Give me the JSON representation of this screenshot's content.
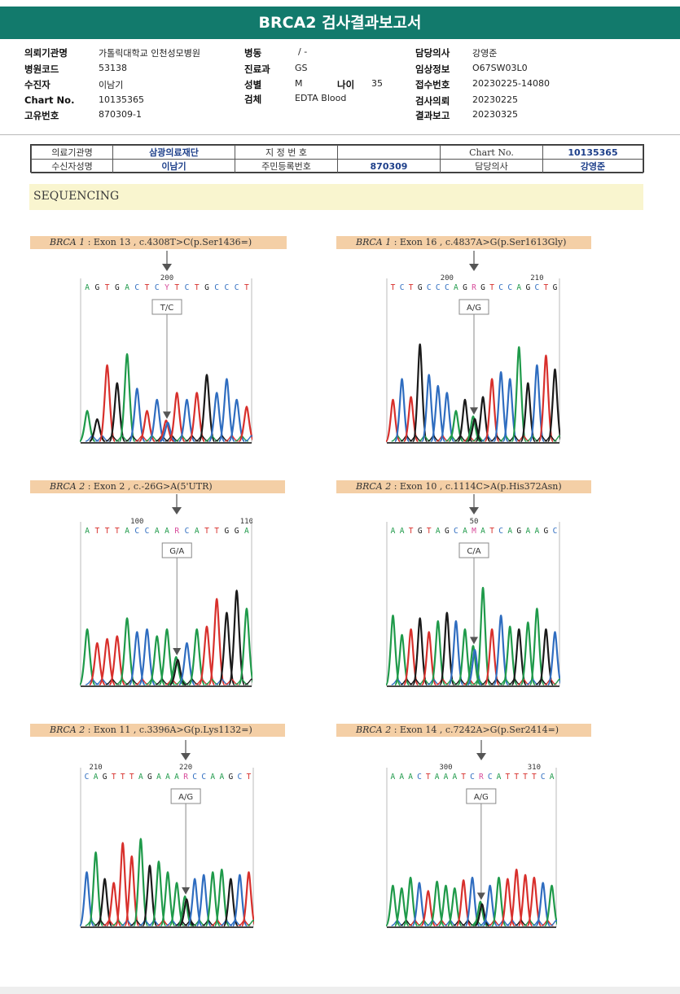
{
  "report": {
    "title": "BRCA2 검사결과보고서"
  },
  "header": {
    "fields": [
      {
        "key": "의뢰기관명",
        "value": "가톨릭대학교 인천성모병원"
      },
      {
        "key": "병원코드",
        "value": "53138"
      },
      {
        "key": "수진자",
        "value": "이남기"
      },
      {
        "key": "Chart No.",
        "value": "10135365"
      },
      {
        "key": "고유번호",
        "value": "870309-1"
      },
      {
        "key": "병동",
        "value": "/ -"
      },
      {
        "key": "진료과",
        "value": "GS"
      },
      {
        "key": "성별",
        "value": "M"
      },
      {
        "key": "나이",
        "value": "35"
      },
      {
        "key": "검체",
        "value": "EDTA Blood"
      },
      {
        "key": "담당의사",
        "value": "강영준"
      },
      {
        "key": "임상정보",
        "value": "O67SW03L0"
      },
      {
        "key": "접수번호",
        "value": "20230225-14080"
      },
      {
        "key": "검사의뢰",
        "value": "20230225"
      },
      {
        "key": "결과보고",
        "value": "20230325"
      }
    ]
  },
  "lab_table": {
    "r1c1": "의료기관명",
    "r1c2": "삼광의료재단",
    "r1c3": "지 정 번 호",
    "r1c4": "",
    "r1c5": "Chart No.",
    "r1c6": "10135365",
    "r2c1": "수신자성명",
    "r2c2": "이남기",
    "r2c3": "주민등록번호",
    "r2c4": "870309",
    "r2c5": "담당의사",
    "r2c6": "강영준"
  },
  "section": {
    "title": "SEQUENCING"
  },
  "colors": {
    "A": "#1f9a4a",
    "T": "#d8302c",
    "G": "#1a1a1a",
    "C": "#2f6dc0",
    "title_bg": "#127a6c"
  },
  "panels": [
    {
      "gene": "BRCA 1",
      "variant": " : Exon 13 , c.4308T>C(p.Ser1436=)",
      "seq": "AGTGACTCYTCTGCCCT",
      "marker_index": 8,
      "pos_labels": [
        {
          "i": 8,
          "t": "200"
        }
      ],
      "call": "T/C",
      "peaks": [
        0.22,
        0.16,
        0.55,
        0.42,
        0.63,
        0.38,
        0.22,
        0.3,
        0.15,
        0.35,
        0.3,
        0.35,
        0.48,
        0.35,
        0.45,
        0.3,
        0.25
      ],
      "seed": 1
    },
    {
      "gene": "BRCA 1",
      "variant": " : Exon 16 , c.4837A>G(p.Ser1613Gly)",
      "seq": "TCTGCCCAGRGTCCAGCTG",
      "marker_index": 9,
      "pos_labels": [
        {
          "i": 6,
          "t": "200"
        },
        {
          "i": 16,
          "t": "210"
        }
      ],
      "call": "A/G",
      "peaks": [
        0.3,
        0.45,
        0.32,
        0.7,
        0.48,
        0.4,
        0.35,
        0.22,
        0.3,
        0.18,
        0.32,
        0.45,
        0.5,
        0.45,
        0.68,
        0.42,
        0.55,
        0.62,
        0.52
      ],
      "seed": 2
    },
    {
      "gene": "BRCA 2",
      "variant": " : Exon 2 , c.-26G>A(5'UTR)",
      "seq": "ATTTACCAARCATTGGA",
      "marker_index": 9,
      "pos_labels": [
        {
          "i": 5,
          "t": "100"
        },
        {
          "i": 16,
          "t": "110"
        }
      ],
      "call": "G/A",
      "peaks": [
        0.4,
        0.3,
        0.33,
        0.35,
        0.48,
        0.38,
        0.4,
        0.35,
        0.4,
        0.2,
        0.3,
        0.4,
        0.42,
        0.62,
        0.52,
        0.68,
        0.55
      ],
      "seed": 3
    },
    {
      "gene": "BRCA 2",
      "variant": " : Exon 10 , c.1114C>A(p.His372Asn)",
      "seq": "AATGTAGCAMATCAGAAGC",
      "marker_index": 9,
      "pos_labels": [
        {
          "i": 9,
          "t": "50"
        }
      ],
      "call": "C/A",
      "peaks": [
        0.5,
        0.36,
        0.4,
        0.48,
        0.38,
        0.46,
        0.52,
        0.46,
        0.4,
        0.28,
        0.7,
        0.4,
        0.5,
        0.42,
        0.4,
        0.45,
        0.55,
        0.4,
        0.38
      ],
      "seed": 4
    },
    {
      "gene": "BRCA 2",
      "variant": " : Exon 11 , c.3396A>G(p.Lys1132=)",
      "seq": "CAGTTTAGAAARCCAAGCT",
      "marker_index": 11,
      "pos_labels": [
        {
          "i": 1,
          "t": "210"
        },
        {
          "i": 11,
          "t": "220"
        }
      ],
      "call": "A/G",
      "peaks": [
        0.4,
        0.55,
        0.35,
        0.32,
        0.62,
        0.52,
        0.65,
        0.45,
        0.48,
        0.4,
        0.32,
        0.22,
        0.35,
        0.38,
        0.4,
        0.42,
        0.35,
        0.38,
        0.4
      ],
      "seed": 5
    },
    {
      "gene": "BRCA 2",
      "variant": " : Exon 14 , c.7242A>G(p.Ser2414=)",
      "seq": "AAACTAAATCRCATTTTCA",
      "marker_index": 10,
      "pos_labels": [
        {
          "i": 6,
          "t": "300"
        },
        {
          "i": 16,
          "t": "310"
        }
      ],
      "call": "A/G",
      "peaks": [
        0.3,
        0.28,
        0.36,
        0.32,
        0.26,
        0.33,
        0.3,
        0.28,
        0.34,
        0.36,
        0.18,
        0.3,
        0.36,
        0.35,
        0.42,
        0.38,
        0.36,
        0.32,
        0.3
      ],
      "seed": 6
    }
  ]
}
